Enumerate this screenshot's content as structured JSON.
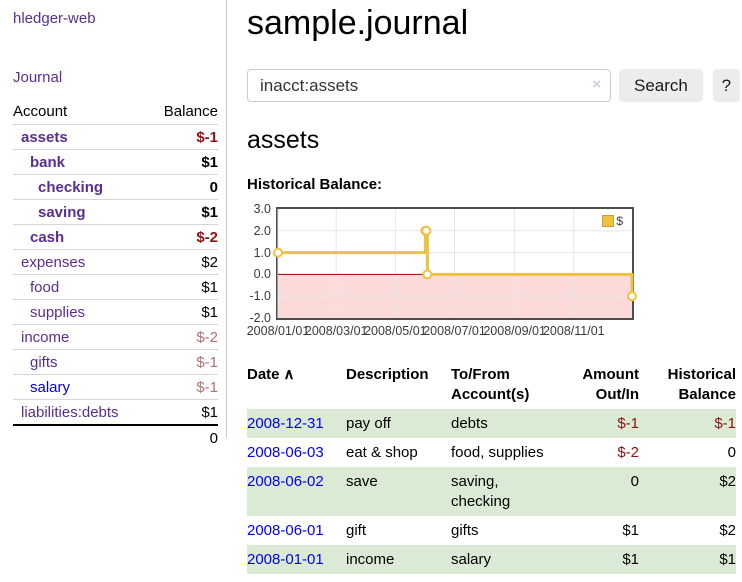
{
  "app": {
    "title": "hledger-web"
  },
  "sidebar": {
    "journal_label": "Journal",
    "accounts": {
      "col_account": "Account",
      "col_balance": "Balance",
      "rows": [
        {
          "name": "assets",
          "balance": "$-1",
          "indent": 1,
          "bold": true
        },
        {
          "name": "bank",
          "balance": "$1",
          "indent": 2,
          "bold": true
        },
        {
          "name": "checking",
          "balance": "0",
          "indent": 3,
          "bold": true
        },
        {
          "name": "saving",
          "balance": "$1",
          "indent": 3,
          "bold": true
        },
        {
          "name": "cash",
          "balance": "$-2",
          "indent": 2,
          "bold": true
        },
        {
          "name": "expenses",
          "balance": "$2",
          "indent": 1,
          "bold": false
        },
        {
          "name": "food",
          "balance": "$1",
          "indent": 2,
          "bold": false
        },
        {
          "name": "supplies",
          "balance": "$1",
          "indent": 2,
          "bold": false
        },
        {
          "name": "income",
          "balance": "$-2",
          "indent": 1,
          "bold": false
        },
        {
          "name": "gifts",
          "balance": "$-1",
          "indent": 2,
          "bold": false
        },
        {
          "name": "salary",
          "balance": "$-1",
          "indent": 2,
          "bold": false,
          "unvisited": true
        },
        {
          "name": "liabilities:debts",
          "balance": "$1",
          "indent": 1,
          "bold": false
        }
      ],
      "total": "0"
    }
  },
  "main": {
    "title": "sample.journal",
    "search": {
      "value": "inacct:assets",
      "clear_icon": "×",
      "search_label": "Search",
      "help_label": "?"
    },
    "account_heading": "assets",
    "section_label": "Historical Balance:"
  },
  "chart_data": {
    "type": "line",
    "step": true,
    "title": "Historical Balance",
    "legend": [
      {
        "label": "$",
        "color": "#edc240"
      }
    ],
    "x": [
      "2008-01-01",
      "2008-06-01",
      "2008-06-02",
      "2008-06-03",
      "2008-12-31"
    ],
    "series": [
      {
        "name": "$",
        "values": [
          1.0,
          2.0,
          2.0,
          0.0,
          -1.0
        ]
      }
    ],
    "ylim": [
      -2.0,
      3.0
    ],
    "yticks": [
      "3.0",
      "2.0",
      "1.0",
      "0.0",
      "-1.0",
      "-2.0"
    ],
    "xticks": [
      "2008/01/01",
      "2008/03/01",
      "2008/05/01",
      "2008/07/01",
      "2008/09/01",
      "2008/11/01"
    ],
    "grid": true,
    "legend_position": "top-right",
    "colors": {
      "line": "#edc240",
      "marker_fill": "#ffffff",
      "negative_region": "#fcdada",
      "zero_line": "#9b0000",
      "grid": "#e6e6e6",
      "border": "#4d4d4d"
    }
  },
  "transactions": {
    "sort_icon": "∧",
    "headers": {
      "date": "Date",
      "description": "Description",
      "tofrom": "To/From Account(s)",
      "amount": "Amount Out/In",
      "balance": "Historical Balance"
    },
    "rows": [
      {
        "date": "2008-12-31",
        "description": "pay off",
        "accounts": "debts",
        "amount": "$-1",
        "balance": "$-1"
      },
      {
        "date": "2008-06-03",
        "description": "eat & shop",
        "accounts": "food, supplies",
        "amount": "$-2",
        "balance": "0"
      },
      {
        "date": "2008-06-02",
        "description": "save",
        "accounts": "saving, checking",
        "amount": "0",
        "balance": "$2"
      },
      {
        "date": "2008-06-01",
        "description": "gift",
        "accounts": "gifts",
        "amount": "$1",
        "balance": "$2"
      },
      {
        "date": "2008-01-01",
        "description": "income",
        "accounts": "salary",
        "amount": "$1",
        "balance": "$1"
      }
    ]
  }
}
